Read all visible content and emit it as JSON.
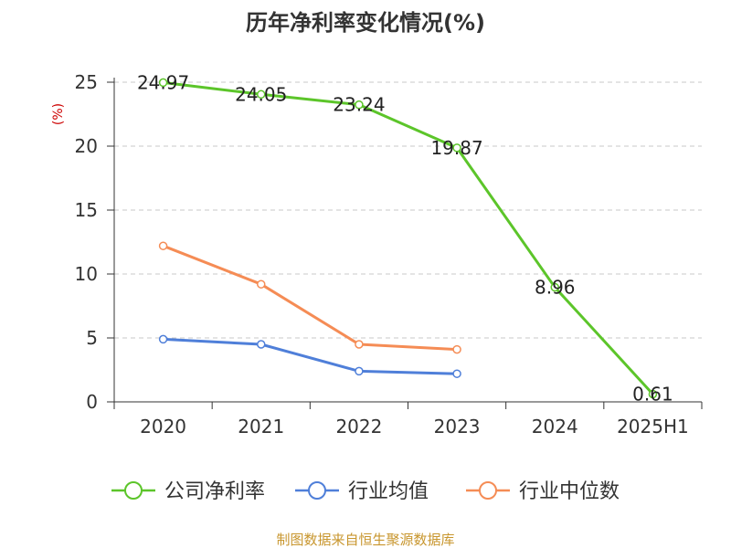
{
  "chart_data": {
    "type": "line",
    "title": "历年净利率变化情况(%)",
    "ylabel": "(%)",
    "ylabel_color": "#cc0000",
    "categories": [
      "2020",
      "2021",
      "2022",
      "2023",
      "2024",
      "2025H1"
    ],
    "ylim": [
      0,
      25
    ],
    "yticks": [
      0,
      5,
      10,
      15,
      20,
      25
    ],
    "grid": true,
    "legend_position": "bottom",
    "series": [
      {
        "name": "公司净利率",
        "color": "#5cc52a",
        "values": [
          24.97,
          24.05,
          23.24,
          19.87,
          8.96,
          0.61
        ],
        "show_labels": true
      },
      {
        "name": "行业均值",
        "color": "#4f7fd9",
        "values": [
          4.9,
          4.5,
          2.4,
          2.2,
          null,
          null
        ],
        "show_labels": false
      },
      {
        "name": "行业中位数",
        "color": "#f58c55",
        "values": [
          12.2,
          9.2,
          4.5,
          4.1,
          null,
          null
        ],
        "show_labels": false
      }
    ],
    "source": "制图数据来自恒生聚源数据库",
    "source_color": "#c8962e"
  }
}
